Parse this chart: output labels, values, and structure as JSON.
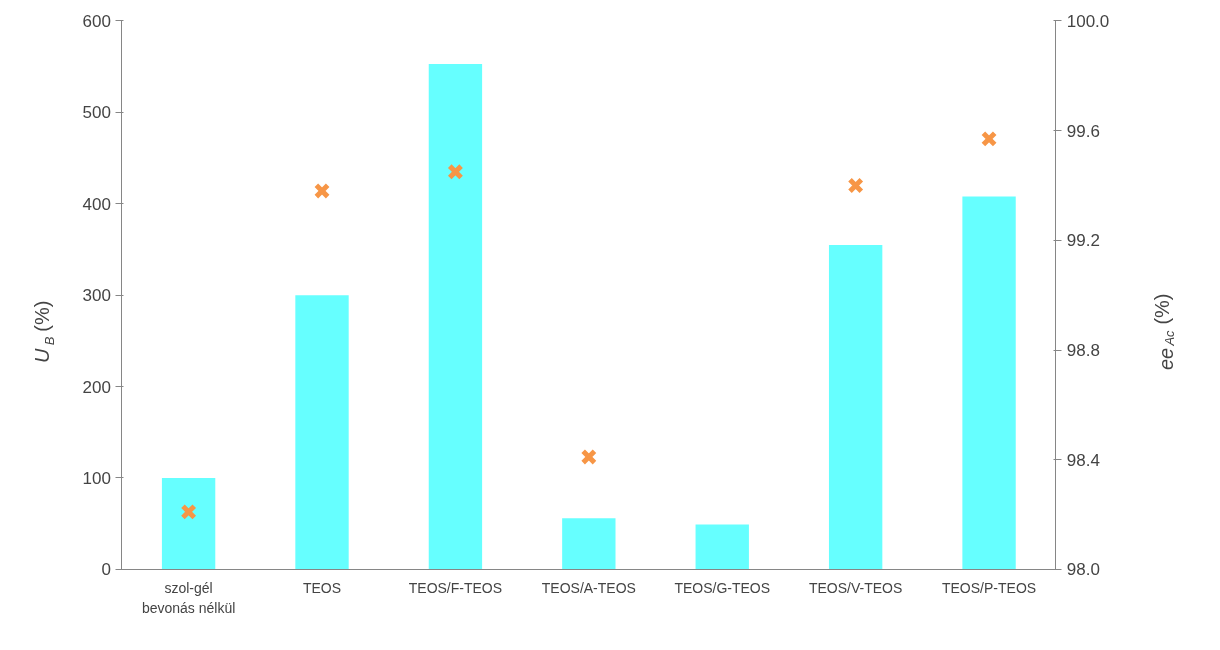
{
  "chart_data": {
    "type": "bar",
    "ylabel": "U$_{B}$ (%)",
    "y2label": "ee$_{Ac}$ (%)",
    "categories": [
      "szol-gél\nbevonás nélkül",
      "TEOS",
      "TEOS/F-TEOS",
      "TEOS/A-TEOS",
      "TEOS/G-TEOS",
      "TEOS/V-TEOS",
      "TEOS/P-TEOS"
    ],
    "series": [
      {
        "type": "bar",
        "color": "#66ffff",
        "values": [
          100,
          300,
          553,
          56,
          49,
          355,
          408
        ]
      },
      {
        "type": "scatter",
        "axis": "y2",
        "color": "#f79646",
        "values": [
          98.21,
          99.38,
          99.45,
          98.41,
          null,
          99.4,
          99.57
        ]
      }
    ],
    "ylim": [
      0,
      600
    ],
    "yticks": [
      0,
      100,
      200,
      300,
      400,
      500,
      600
    ],
    "y2lim": [
      98,
      100
    ],
    "y2ticks": [
      {
        "value": 98,
        "label": "98.0"
      },
      {
        "value": 98.4,
        "label": "98.4"
      },
      {
        "value": 98.8,
        "label": "98.8"
      },
      {
        "value": 99.2,
        "label": "99.2"
      },
      {
        "value": 99.6,
        "label": "99.6"
      },
      {
        "value": 100,
        "label": "100.0"
      }
    ],
    "marker": "cross",
    "grid": false
  }
}
